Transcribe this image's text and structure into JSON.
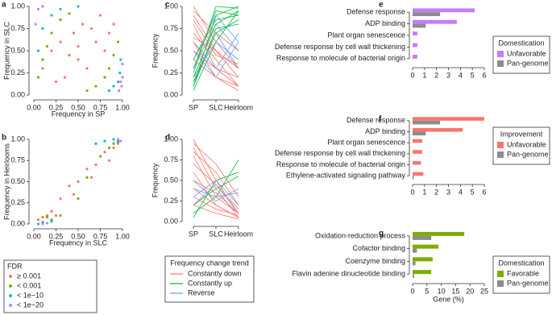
{
  "chart_data": [
    {
      "type": "scatter",
      "label": "a",
      "xlabel": "Frequency in SP",
      "ylabel": "Frequency in SLC",
      "xlim": [
        0,
        1
      ],
      "ylim": [
        0,
        1
      ],
      "xticks": [
        {
          "value": 0,
          "label": "0.00"
        },
        {
          "value": 0.25,
          "label": "0.25"
        },
        {
          "value": 0.5,
          "label": "0.50"
        },
        {
          "value": 0.75,
          "label": "0.75"
        },
        {
          "value": 1,
          "label": "1.00"
        }
      ],
      "yticks": [
        {
          "value": 0,
          "label": "0.00"
        },
        {
          "value": 0.25,
          "label": "0.25"
        },
        {
          "value": 0.5,
          "label": "0.50"
        },
        {
          "value": 0.75,
          "label": "0.75"
        },
        {
          "value": 1,
          "label": "1.00"
        }
      ],
      "legend_title": "FDR",
      "series": [
        {
          "name": "≥ 0.001",
          "color": "#f8766d",
          "x": [
            0.1,
            0.2,
            0.3,
            0.35,
            0.45,
            0.5,
            0.55,
            0.6,
            0.7,
            0.75,
            0.8,
            0.4,
            0.25,
            0.65,
            0.85,
            0.5,
            0.3,
            0.9
          ],
          "y": [
            0.3,
            0.5,
            0.6,
            0.2,
            0.7,
            0.4,
            0.8,
            0.3,
            0.6,
            0.9,
            0.5,
            0.45,
            0.15,
            0.75,
            0.7,
            0.55,
            0.85,
            0.8
          ]
        },
        {
          "name": "< 0.001",
          "color": "#7cae00",
          "x": [
            0.05,
            0.1,
            0.15,
            0.2,
            0.3,
            0.7,
            0.8,
            0.85,
            0.9,
            0.95,
            0.4,
            0.6
          ],
          "y": [
            0.2,
            0.4,
            0.55,
            0.7,
            0.85,
            0.1,
            0.2,
            0.3,
            0.45,
            0.6,
            0.92,
            0.05
          ]
        },
        {
          "name": "< 1e−10",
          "color": "#00bfc4",
          "x": [
            0.05,
            0.1,
            0.2,
            0.3,
            0.5,
            0.85,
            0.9,
            0.95,
            0.97,
            0.98
          ],
          "y": [
            0.5,
            0.75,
            0.9,
            0.97,
            1.0,
            0.05,
            0.1,
            0.15,
            0.25,
            0.4
          ]
        },
        {
          "name": "< 1e−20",
          "color": "#c77cff",
          "x": [
            0.02,
            0.05,
            0.1,
            0.96,
            0.98,
            1.0,
            1.0,
            0.99
          ],
          "y": [
            0.8,
            0.97,
            1.0,
            0.05,
            0.15,
            0.2,
            0.35,
            0.1
          ]
        }
      ]
    },
    {
      "type": "scatter",
      "label": "b",
      "xlabel": "Frequency in SLC",
      "ylabel": "Frequency in Heirlooms",
      "xlim": [
        0,
        1
      ],
      "ylim": [
        0,
        1
      ],
      "xticks": [
        {
          "value": 0,
          "label": "0.00"
        },
        {
          "value": 0.25,
          "label": "0.25"
        },
        {
          "value": 0.5,
          "label": "0.50"
        },
        {
          "value": 0.75,
          "label": "0.75"
        },
        {
          "value": 1,
          "label": "1.00"
        }
      ],
      "yticks": [
        {
          "value": 0,
          "label": "0.00"
        },
        {
          "value": 0.25,
          "label": "0.25"
        },
        {
          "value": 0.5,
          "label": "0.50"
        },
        {
          "value": 0.75,
          "label": "0.75"
        },
        {
          "value": 1,
          "label": "1.00"
        }
      ],
      "series": [
        {
          "color": "#f8766d",
          "x": [
            0.05,
            0.1,
            0.15,
            0.2,
            0.3,
            0.4,
            0.5,
            0.6,
            0.7,
            0.8,
            0.85,
            0.9,
            0.25,
            0.45,
            0.65,
            0.95
          ],
          "y": [
            0.05,
            0.08,
            0.1,
            0.15,
            0.3,
            0.45,
            0.5,
            0.65,
            0.7,
            0.85,
            0.75,
            0.9,
            0.1,
            0.35,
            0.55,
            0.95
          ]
        },
        {
          "color": "#7cae00",
          "x": [
            0.1,
            0.2,
            0.3,
            0.15,
            0.6,
            0.75,
            0.9,
            0.95,
            0.85,
            0.5
          ],
          "y": [
            0.02,
            0.05,
            0.1,
            0.08,
            0.55,
            0.8,
            0.95,
            0.98,
            0.9,
            0.3
          ]
        },
        {
          "color": "#00bfc4",
          "x": [
            0.05,
            0.1,
            0.2,
            0.7,
            0.8,
            0.9,
            0.95
          ],
          "y": [
            0.0,
            0.02,
            0.03,
            0.95,
            0.98,
            1.0,
            0.97
          ]
        },
        {
          "color": "#c77cff",
          "x": [
            0.1,
            0.15,
            0.95,
            0.98
          ],
          "y": [
            0.0,
            0.01,
            1.0,
            0.98
          ]
        }
      ]
    },
    {
      "type": "lines",
      "label": "c",
      "ylabel": "Frequency",
      "categories": [
        "SP",
        "SLC",
        "Heirloom"
      ],
      "ylim": [
        0,
        1
      ],
      "yticks": [
        {
          "value": 0,
          "label": "0.00"
        },
        {
          "value": 0.25,
          "label": "0.25"
        },
        {
          "value": 0.5,
          "label": "0.50"
        },
        {
          "value": 0.75,
          "label": "0.75"
        },
        {
          "value": 1,
          "label": "1.00"
        }
      ],
      "legend_title": "Frequency change trend",
      "groups": [
        {
          "name": "Constantly down",
          "color": "#f8766d",
          "lines": [
            [
              1,
              0.6,
              0.3
            ],
            [
              0.9,
              0.5,
              0.2
            ],
            [
              0.8,
              0.3,
              0.2
            ],
            [
              0.7,
              0.4,
              0.1
            ],
            [
              0.6,
              0.2,
              0.05
            ],
            [
              0.5,
              0.3,
              0.1
            ],
            [
              0.95,
              0.7,
              0.5
            ],
            [
              0.4,
              0.2,
              0.1
            ],
            [
              0.85,
              0.45,
              0.35
            ],
            [
              0.65,
              0.5,
              0.3
            ]
          ]
        },
        {
          "name": "Constantly up",
          "color": "#00ba38",
          "lines": [
            [
              0.05,
              0.6,
              0.95
            ],
            [
              0.1,
              0.9,
              1
            ],
            [
              0.2,
              0.8,
              0.95
            ],
            [
              0.3,
              0.95,
              0.9
            ],
            [
              0.15,
              0.7,
              0.85
            ],
            [
              0.4,
              0.85,
              0.9
            ],
            [
              0.25,
              1,
              0.98
            ],
            [
              0.1,
              0.75,
              0.8
            ]
          ]
        },
        {
          "name": "Reverse",
          "color": "#619cff",
          "lines": [
            [
              0.1,
              0.7,
              0.3
            ],
            [
              0.3,
              0.8,
              0.5
            ],
            [
              0.5,
              0.2,
              0.6
            ],
            [
              0.2,
              0.6,
              0.4
            ],
            [
              0.6,
              0.3,
              0.7
            ],
            [
              0.4,
              0.9,
              0.6
            ]
          ]
        }
      ]
    },
    {
      "type": "lines",
      "label": "d",
      "ylabel": "Frequency",
      "categories": [
        "SP",
        "SLC",
        "Heirloom"
      ],
      "ylim": [
        0,
        1
      ],
      "yticks": [
        {
          "value": 0,
          "label": "0.00"
        },
        {
          "value": 0.25,
          "label": "0.25"
        },
        {
          "value": 0.5,
          "label": "0.50"
        },
        {
          "value": 0.75,
          "label": "0.75"
        },
        {
          "value": 1,
          "label": "1.00"
        }
      ],
      "groups": [
        {
          "color": "#f8766d",
          "lines": [
            [
              1,
              0.5,
              0.1
            ],
            [
              0.9,
              0.4,
              0.05
            ],
            [
              0.8,
              0.3,
              0.1
            ],
            [
              0.7,
              0.45,
              0.15
            ],
            [
              0.6,
              0.2,
              0.05
            ],
            [
              0.5,
              0.35,
              0.1
            ],
            [
              0.4,
              0.2,
              0.05
            ],
            [
              0.3,
              0.15,
              0.08
            ],
            [
              0.2,
              0.1,
              0.03
            ],
            [
              0.85,
              0.6,
              0.2
            ],
            [
              0.95,
              0.7,
              0.3
            ]
          ]
        },
        {
          "color": "#00ba38",
          "lines": [
            [
              0.1,
              0.3,
              0.75
            ],
            [
              0.2,
              0.4,
              0.55
            ],
            [
              0.05,
              0.5,
              0.6
            ]
          ]
        },
        {
          "color": "#619cff",
          "lines": [
            [
              0.3,
              0.5,
              0.2
            ],
            [
              0.5,
              0.25,
              0.4
            ],
            [
              0.2,
              0.45,
              0.1
            ],
            [
              0.4,
              0.3,
              0.35
            ]
          ]
        }
      ]
    },
    {
      "type": "hbar",
      "label": "e",
      "legend_title": "Domestication",
      "categories": [
        "Defense response",
        "ADP binding",
        "Plant organ senescence",
        "Defense response by cell wall thickening",
        "Response to molecule of bacterial origin"
      ],
      "xlim": [
        0,
        6
      ],
      "xticks": [
        0,
        1,
        2,
        3,
        4,
        5,
        6
      ],
      "series": [
        {
          "name": "Unfavorable",
          "color": "#c77cff",
          "values": [
            5.2,
            3.7,
            0.4,
            0.4,
            0.4
          ]
        },
        {
          "name": "Pan-genome",
          "color": "#8c8c8c",
          "values": [
            2.3,
            1.1,
            0,
            0,
            0
          ]
        }
      ]
    },
    {
      "type": "hbar",
      "label": "f",
      "legend_title": "Improvement",
      "categories": [
        "Defense response",
        "ADP binding",
        "Plant organ senescence",
        "Defense response by cell wall thickening",
        "Response to molecule of bacterial origin",
        "Ethylene-activated signaling pathway"
      ],
      "xlim": [
        0,
        6
      ],
      "xticks": [
        0,
        1,
        2,
        3,
        4,
        5,
        6
      ],
      "series": [
        {
          "name": "Unfavorable",
          "color": "#f8766d",
          "values": [
            6.0,
            4.2,
            0.8,
            0.8,
            0.7,
            0.9
          ]
        },
        {
          "name": "Pan-genome",
          "color": "#8c8c8c",
          "values": [
            2.3,
            1.1,
            0,
            0,
            0,
            0.1
          ]
        }
      ]
    },
    {
      "type": "hbar",
      "label": "g",
      "legend_title": "Domestication",
      "xlabel": "Gene (%)",
      "categories": [
        "Oxidation-reduction process",
        "Cofactor binding",
        "Coenzyme binding",
        "Flavin adenine dinucleotide binding"
      ],
      "xlim": [
        0,
        25
      ],
      "xticks": [
        0,
        5,
        10,
        15,
        20,
        25
      ],
      "series": [
        {
          "name": "Favorable",
          "color": "#7cae00",
          "values": [
            18,
            9,
            7,
            6.5
          ]
        },
        {
          "name": "Pan-genome",
          "color": "#8c8c8c",
          "values": [
            6.5,
            1.5,
            1,
            0.5
          ]
        }
      ]
    }
  ]
}
